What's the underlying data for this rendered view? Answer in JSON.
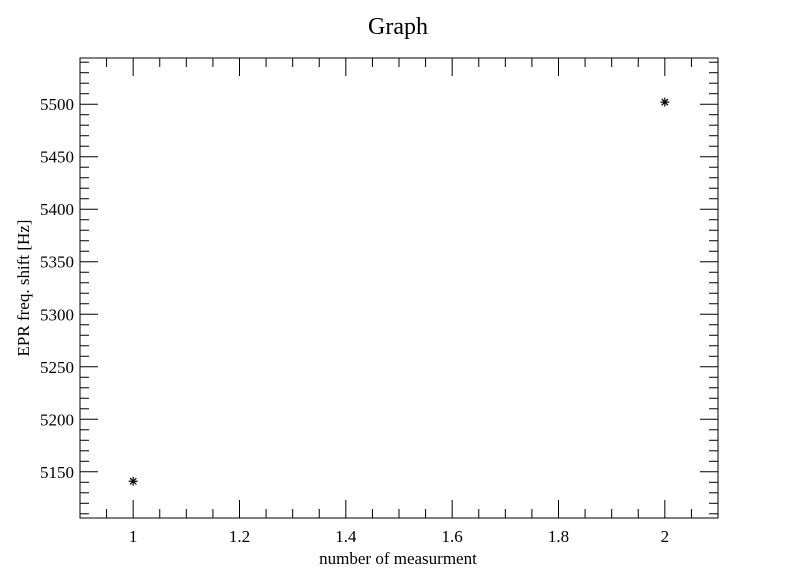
{
  "chart_data": {
    "type": "scatter",
    "title": "Graph",
    "xlabel": "number of measurment",
    "ylabel": "EPR freq. shift [Hz]",
    "xlim": [
      0.9,
      2.1
    ],
    "ylim": [
      5106,
      5544
    ],
    "xticks": [
      1,
      1.2,
      1.4,
      1.6,
      1.8,
      2
    ],
    "xtick_labels": [
      "1",
      "1.2",
      "1.4",
      "1.6",
      "1.8",
      "2"
    ],
    "yticks": [
      5150,
      5200,
      5250,
      5300,
      5350,
      5400,
      5450,
      5500
    ],
    "ytick_labels": [
      "5150",
      "5200",
      "5250",
      "5300",
      "5350",
      "5400",
      "5450",
      "5500"
    ],
    "marker": "*",
    "grid": false,
    "points": [
      {
        "x": 1,
        "y": 5141
      },
      {
        "x": 2,
        "y": 5502
      }
    ]
  }
}
